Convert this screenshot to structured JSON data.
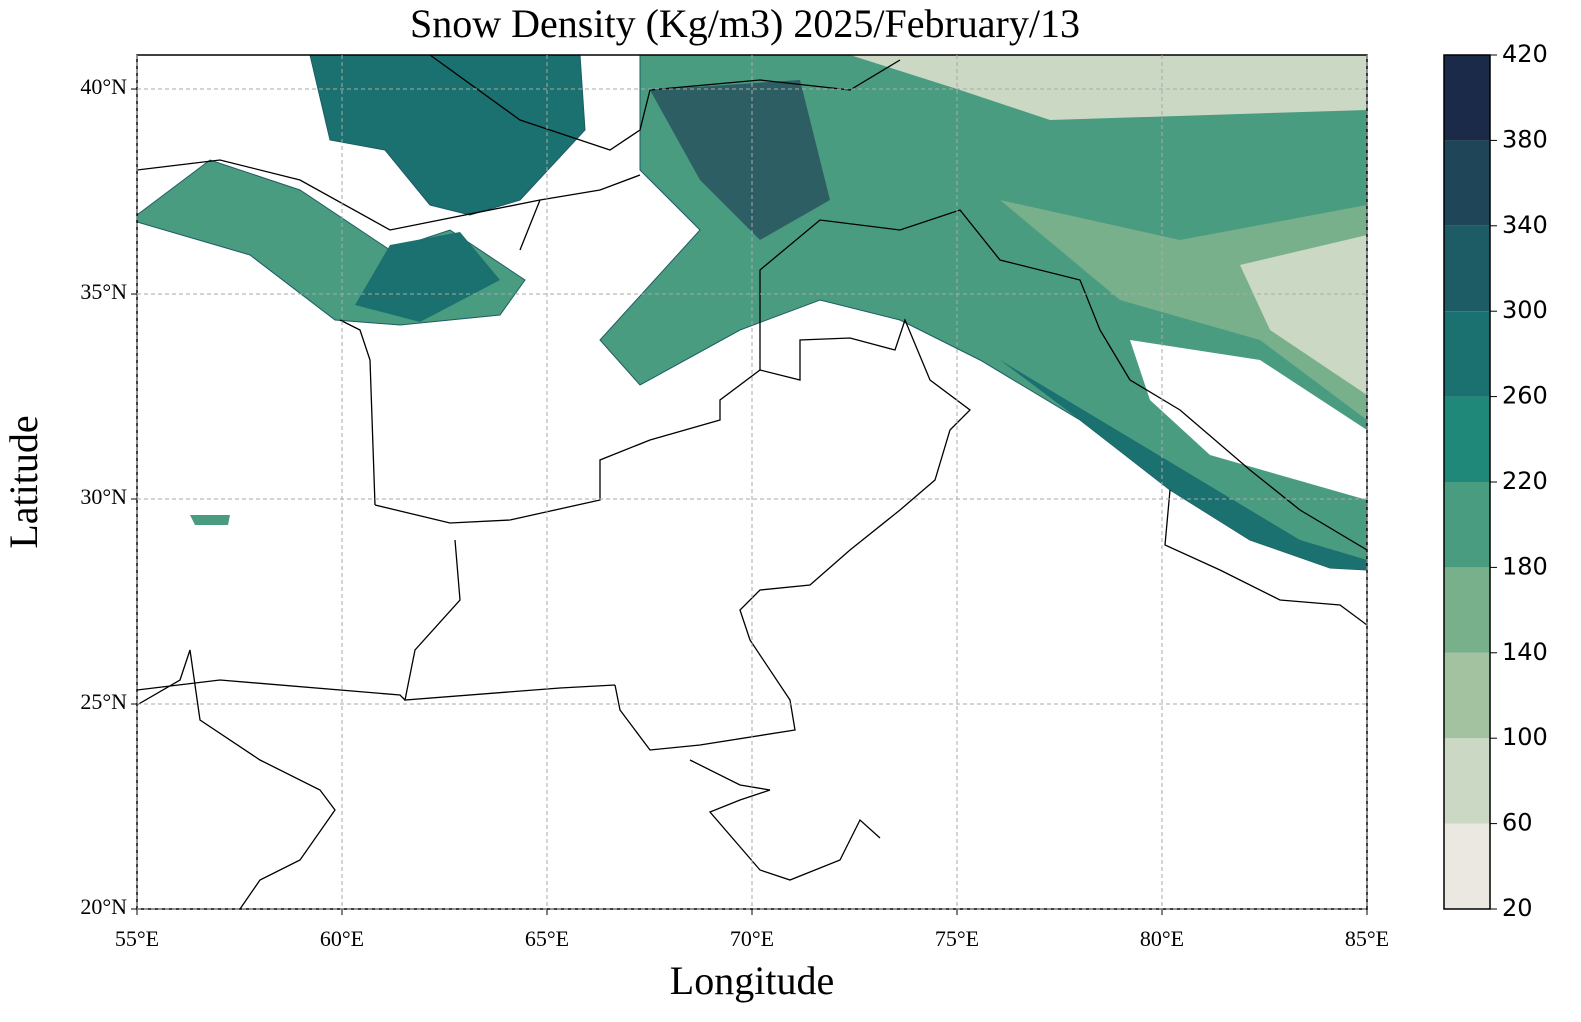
{
  "chart_data": {
    "type": "map",
    "title": "Snow Density (Kg/m3) 2025/February/13",
    "x_label": "Longitude",
    "y_label": "Latitude",
    "xlim": [
      55,
      85
    ],
    "ylim": [
      20,
      40.83
    ],
    "xticks": [
      {
        "value": 55,
        "label": "55°E"
      },
      {
        "value": 60,
        "label": "60°E"
      },
      {
        "value": 65,
        "label": "65°E"
      },
      {
        "value": 70,
        "label": "70°E"
      },
      {
        "value": 75,
        "label": "75°E"
      },
      {
        "value": 80,
        "label": "80°E"
      },
      {
        "value": 85,
        "label": "85°E"
      }
    ],
    "yticks": [
      {
        "value": 20,
        "label": "20°N"
      },
      {
        "value": 25,
        "label": "25°N"
      },
      {
        "value": 30,
        "label": "30°N"
      },
      {
        "value": 35,
        "label": "35°N"
      },
      {
        "value": 40,
        "label": "40°N"
      }
    ],
    "grid": true,
    "colorbar": {
      "ticks": [
        20,
        60,
        100,
        140,
        180,
        220,
        260,
        300,
        340,
        380,
        420
      ],
      "colors": [
        "#ebe8e2",
        "#cbd8c4",
        "#a3c3a0",
        "#78b08c",
        "#4a9c80",
        "#1f8878",
        "#1b7070",
        "#1d5c65",
        "#1f4558",
        "#1b2a48"
      ]
    }
  }
}
